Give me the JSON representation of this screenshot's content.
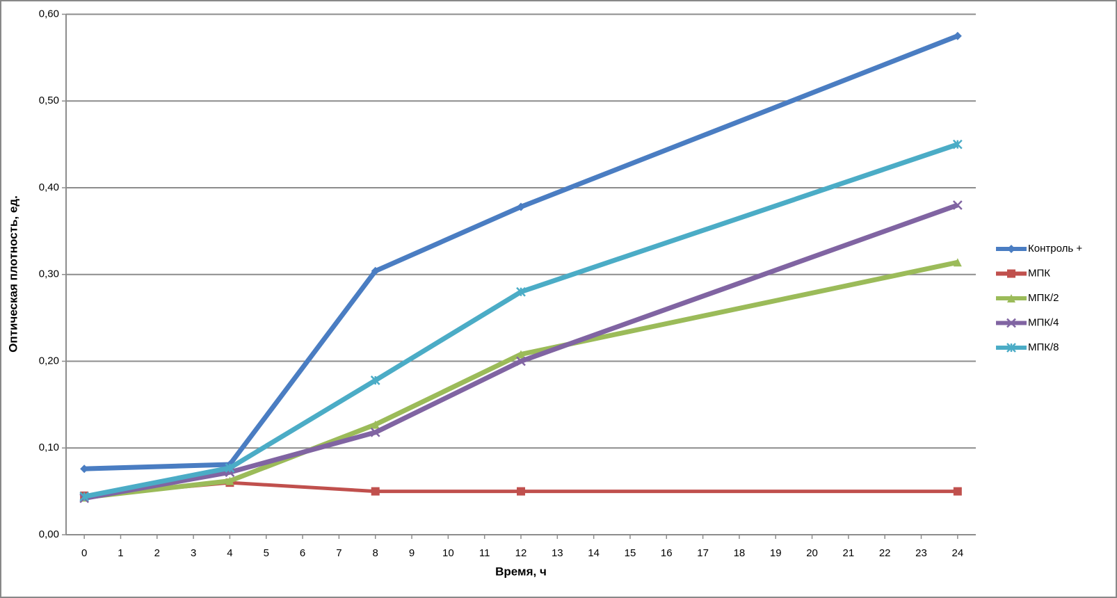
{
  "chart_data": {
    "type": "line",
    "x_label": "Время, ч",
    "y_label": "Оптическая плотность,  ед.",
    "x": [
      0,
      4,
      8,
      12,
      24
    ],
    "xlim": [
      -0.5,
      24.5
    ],
    "xticks": [
      0,
      1,
      2,
      3,
      4,
      5,
      6,
      7,
      8,
      9,
      10,
      11,
      12,
      13,
      14,
      15,
      16,
      17,
      18,
      19,
      20,
      21,
      22,
      23,
      24
    ],
    "ylim": [
      0,
      0.6
    ],
    "yticks": [
      {
        "value": 0,
        "label": "0,00"
      },
      {
        "value": 0.1,
        "label": "0,10"
      },
      {
        "value": 0.2,
        "label": "0,20"
      },
      {
        "value": 0.3,
        "label": "0,30"
      },
      {
        "value": 0.4,
        "label": "0,40"
      },
      {
        "value": 0.5,
        "label": "0,50"
      },
      {
        "value": 0.6,
        "label": "0,60"
      }
    ],
    "grid": true,
    "legend": "right",
    "series": [
      {
        "name": "Контроль +",
        "color": "#4a7dc2",
        "marker": "diamond",
        "values": [
          0.076,
          0.081,
          0.304,
          0.378,
          0.575
        ]
      },
      {
        "name": "МПК",
        "color": "#c0504d",
        "marker": "square",
        "values": [
          0.045,
          0.06,
          0.05,
          0.05,
          0.05
        ]
      },
      {
        "name": "МПК/2",
        "color": "#9bbb59",
        "marker": "triangle",
        "values": [
          0.043,
          0.062,
          0.127,
          0.208,
          0.314
        ]
      },
      {
        "name": "МПК/4",
        "color": "#8064a2",
        "marker": "x",
        "values": [
          0.042,
          0.072,
          0.118,
          0.2,
          0.38
        ]
      },
      {
        "name": "МПК/8",
        "color": "#4bacc6",
        "marker": "star",
        "values": [
          0.044,
          0.077,
          0.178,
          0.28,
          0.45
        ]
      }
    ]
  }
}
